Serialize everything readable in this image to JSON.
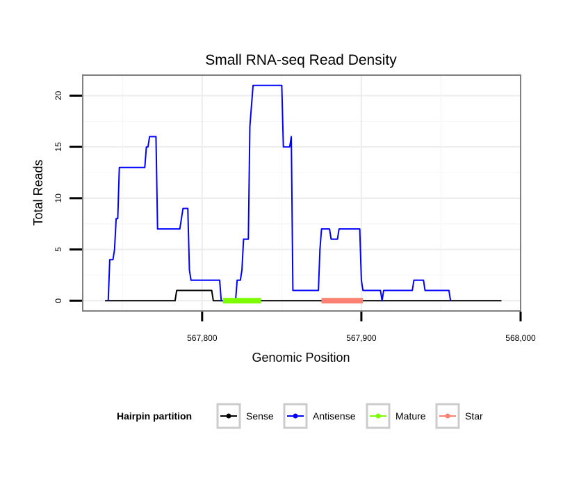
{
  "chart_data": {
    "type": "line",
    "title": "Small RNA-seq Read Density",
    "xlabel": "Genomic Position",
    "ylabel": "Total Reads",
    "xlim": [
      567725,
      568000
    ],
    "ylim": [
      -1,
      22
    ],
    "x_ticks": [
      567800,
      567900,
      568000
    ],
    "x_tick_labels": [
      "567,800",
      "567,900",
      "568,000"
    ],
    "y_ticks": [
      0,
      5,
      10,
      15,
      20
    ],
    "y_tick_labels": [
      "0",
      "5",
      "10",
      "15",
      "20"
    ],
    "grid": true,
    "legend": {
      "title": "Hairpin partition",
      "placement": "bottom",
      "entries": [
        "Sense",
        "Antisense",
        "Mature",
        "Star"
      ]
    },
    "series": [
      {
        "name": "Sense",
        "color": "#000000",
        "points": [
          [
            567739,
            0
          ],
          [
            567783,
            0
          ],
          [
            567784,
            1
          ],
          [
            567806,
            1
          ],
          [
            567807,
            0
          ],
          [
            567988,
            0
          ]
        ]
      },
      {
        "name": "Antisense",
        "color": "#0000ff",
        "points": [
          [
            567741,
            0
          ],
          [
            567742,
            4
          ],
          [
            567744,
            4
          ],
          [
            567745,
            5
          ],
          [
            567746,
            8
          ],
          [
            567747,
            8
          ],
          [
            567748,
            13
          ],
          [
            567764,
            13
          ],
          [
            567765,
            15
          ],
          [
            567766,
            15
          ],
          [
            567767,
            16
          ],
          [
            567771,
            16
          ],
          [
            567772,
            7
          ],
          [
            567786,
            7
          ],
          [
            567788,
            9
          ],
          [
            567791,
            9
          ],
          [
            567792,
            3
          ],
          [
            567793,
            2
          ],
          [
            567811,
            2
          ],
          [
            567812,
            0
          ],
          [
            567821,
            0
          ],
          [
            567822,
            2
          ],
          [
            567824,
            2
          ],
          [
            567825,
            3
          ],
          [
            567826,
            6
          ],
          [
            567829,
            6
          ],
          [
            567830,
            17
          ],
          [
            567831,
            19
          ],
          [
            567832,
            21
          ],
          [
            567850,
            21
          ],
          [
            567851,
            15
          ],
          [
            567855,
            15
          ],
          [
            567856,
            16
          ],
          [
            567857,
            1
          ],
          [
            567873,
            1
          ],
          [
            567874,
            5
          ],
          [
            567875,
            7
          ],
          [
            567880,
            7
          ],
          [
            567881,
            6
          ],
          [
            567885,
            6
          ],
          [
            567886,
            7
          ],
          [
            567899,
            7
          ],
          [
            567900,
            2
          ],
          [
            567901,
            1
          ],
          [
            567912,
            1
          ],
          [
            567913,
            0
          ],
          [
            567914,
            1
          ],
          [
            567932,
            1
          ],
          [
            567933,
            2
          ],
          [
            567939,
            2
          ],
          [
            567940,
            1
          ],
          [
            567955,
            1
          ],
          [
            567956,
            0
          ]
        ]
      },
      {
        "name": "Mature",
        "color": "#7cfc00",
        "points": [
          [
            567813,
            0
          ],
          [
            567837,
            0
          ]
        ]
      },
      {
        "name": "Star",
        "color": "#fa8072",
        "points": [
          [
            567875,
            0
          ],
          [
            567901,
            0
          ]
        ]
      }
    ]
  }
}
